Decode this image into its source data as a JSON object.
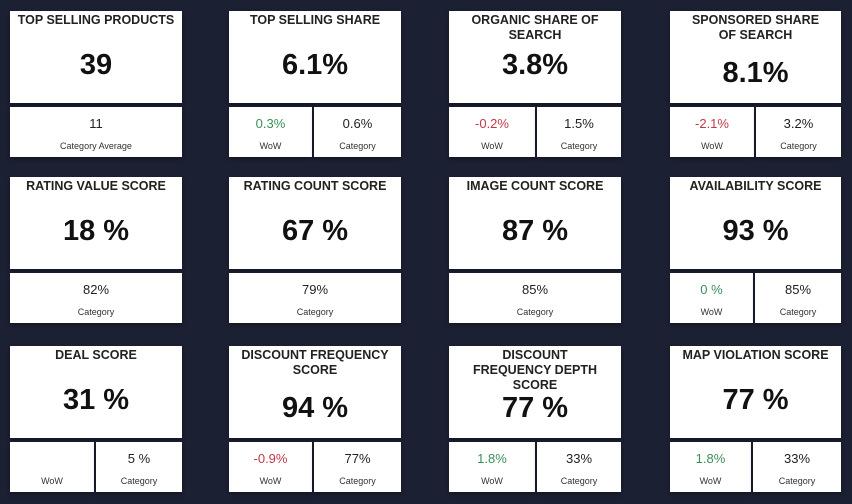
{
  "cards": [
    {
      "title": "TOP SELLING PRODUCTS",
      "value": "39",
      "sub": [
        {
          "value": "11",
          "label": "Category Average",
          "tone": ""
        }
      ]
    },
    {
      "title": "TOP SELLING SHARE",
      "value": "6.1%",
      "sub": [
        {
          "value": "0.3%",
          "label": "WoW",
          "tone": "pos"
        },
        {
          "value": "0.6%",
          "label": "Category",
          "tone": ""
        }
      ]
    },
    {
      "title": "ORGANIC SHARE OF SEARCH",
      "value": "3.8%",
      "sub": [
        {
          "value": "-0.2%",
          "label": "WoW",
          "tone": "neg"
        },
        {
          "value": "1.5%",
          "label": "Category",
          "tone": ""
        }
      ]
    },
    {
      "title": "SPONSORED SHARE OF SEARCH",
      "value": "8.1%",
      "sub": [
        {
          "value": "-2.1%",
          "label": "WoW",
          "tone": "neg"
        },
        {
          "value": "3.2%",
          "label": "Category",
          "tone": ""
        }
      ]
    },
    {
      "title": "RATING VALUE SCORE",
      "value": "18 %",
      "sub": [
        {
          "value": "82%",
          "label": "Category",
          "tone": ""
        }
      ]
    },
    {
      "title": "RATING COUNT SCORE",
      "value": "67 %",
      "sub": [
        {
          "value": "79%",
          "label": "Category",
          "tone": ""
        }
      ]
    },
    {
      "title": "IMAGE COUNT SCORE",
      "value": "87 %",
      "sub": [
        {
          "value": "85%",
          "label": "Category",
          "tone": ""
        }
      ]
    },
    {
      "title": "AVAILABILITY SCORE",
      "value": "93 %",
      "sub": [
        {
          "value": "0 %",
          "label": "WoW",
          "tone": "pos"
        },
        {
          "value": "85%",
          "label": "Category",
          "tone": ""
        }
      ]
    },
    {
      "title": "DEAL SCORE",
      "value": "31 %",
      "sub": [
        {
          "value": "",
          "label": "WoW",
          "tone": ""
        },
        {
          "value": "5 %",
          "label": "Category",
          "tone": ""
        }
      ]
    },
    {
      "title": "DISCOUNT FREQUENCY SCORE",
      "value": "94 %",
      "sub": [
        {
          "value": "-0.9%",
          "label": "WoW",
          "tone": "neg"
        },
        {
          "value": "77%",
          "label": "Category",
          "tone": ""
        }
      ]
    },
    {
      "title": "DISCOUNT FREQUENCY DEPTH SCORE",
      "value": "77 %",
      "sub": [
        {
          "value": "1.8%",
          "label": "WoW",
          "tone": "pos"
        },
        {
          "value": "33%",
          "label": "Category",
          "tone": ""
        }
      ]
    },
    {
      "title": "MAP VIOLATION SCORE",
      "value": "77 %",
      "sub": [
        {
          "value": "1.8%",
          "label": "WoW",
          "tone": "pos"
        },
        {
          "value": "33%",
          "label": "Category",
          "tone": ""
        }
      ]
    }
  ]
}
